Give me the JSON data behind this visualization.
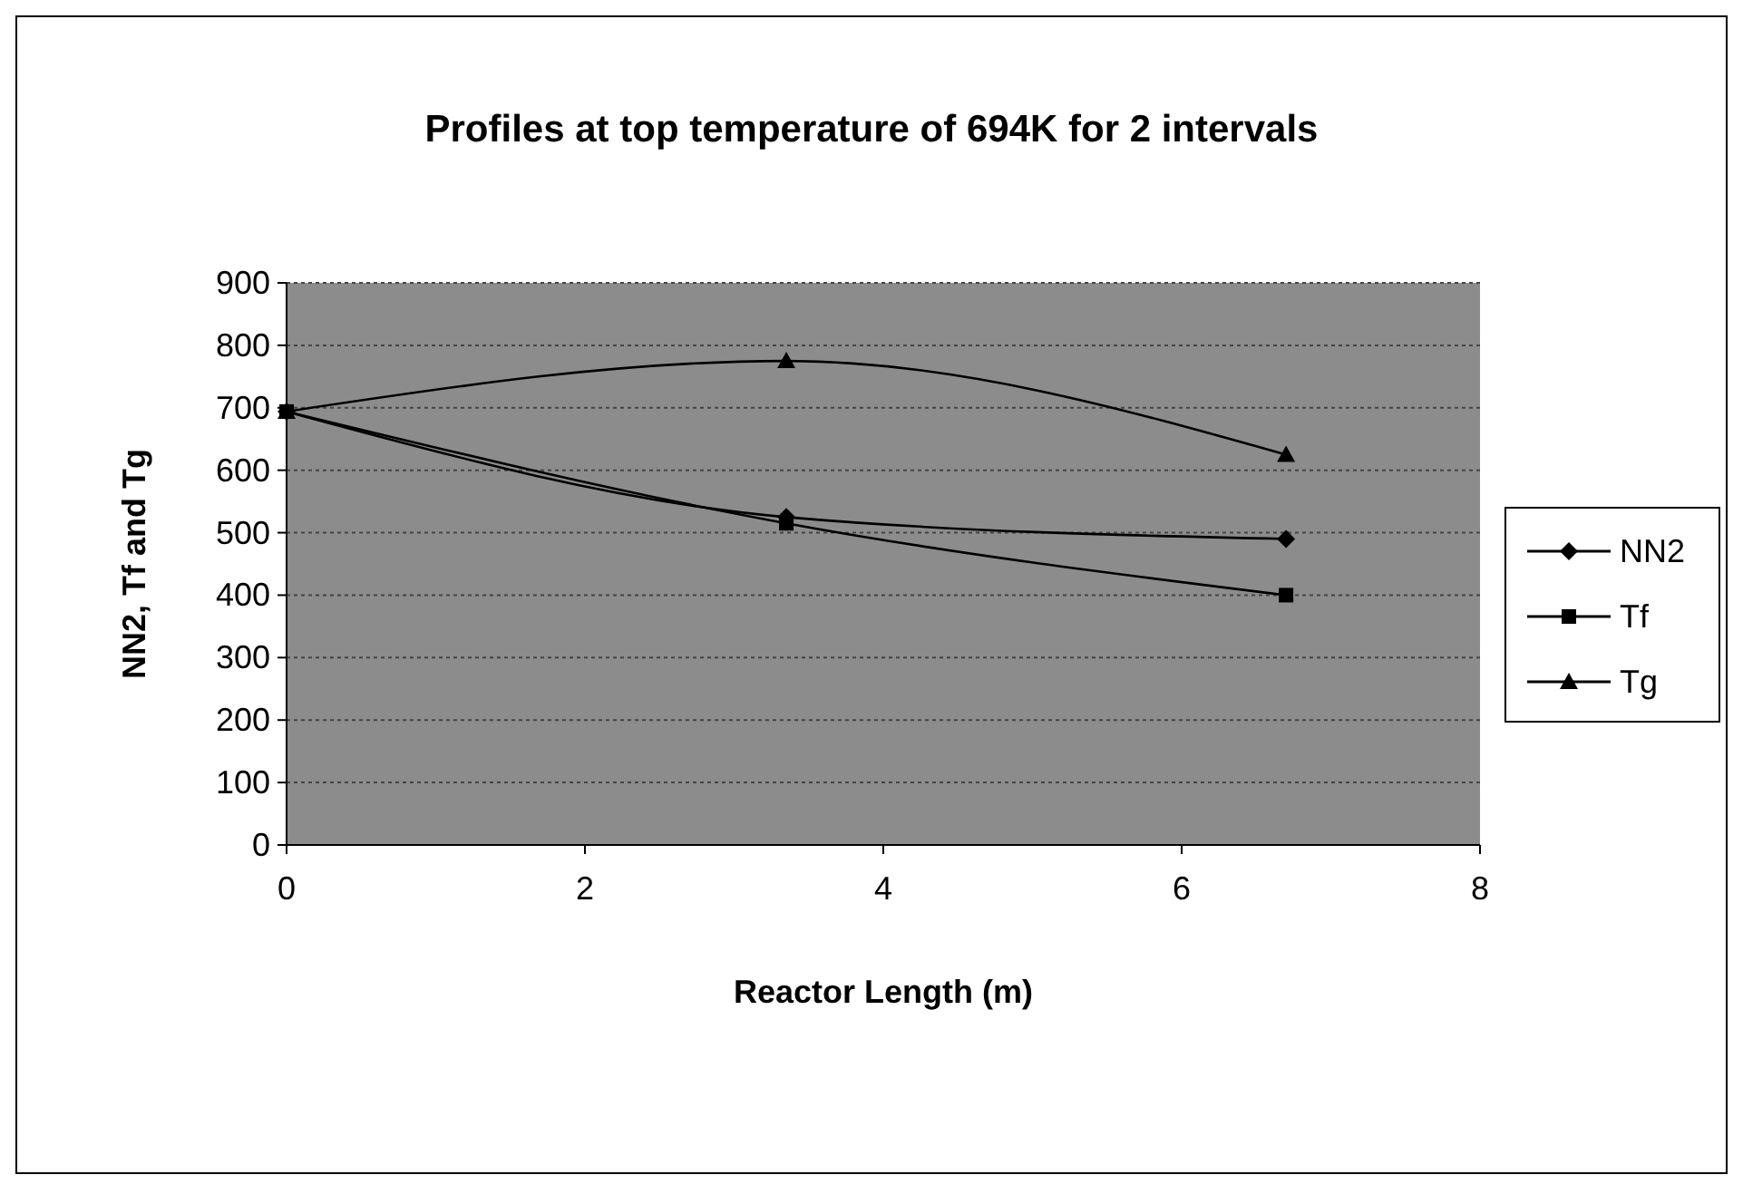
{
  "chart_data": {
    "type": "line",
    "title": "Profiles at top temperature of 694K for 2 intervals",
    "xlabel": "Reactor Length (m)",
    "ylabel": "NN2, Tf and Tg",
    "x": [
      0,
      3.35,
      6.7
    ],
    "xlim": [
      0,
      8
    ],
    "xticks": [
      0,
      2,
      4,
      6,
      8
    ],
    "ylim": [
      0,
      900
    ],
    "yticks": [
      0,
      100,
      200,
      300,
      400,
      500,
      600,
      700,
      800,
      900
    ],
    "grid": "y",
    "legend": "right",
    "series": [
      {
        "name": "NN2",
        "color": "#000000",
        "marker": "diamond",
        "values": [
          694,
          525,
          490
        ]
      },
      {
        "name": "Tf",
        "color": "#000000",
        "marker": "square",
        "values": [
          694,
          515,
          400
        ]
      },
      {
        "name": "Tg",
        "color": "#000000",
        "marker": "triangle",
        "values": [
          694,
          775,
          625
        ]
      }
    ]
  }
}
